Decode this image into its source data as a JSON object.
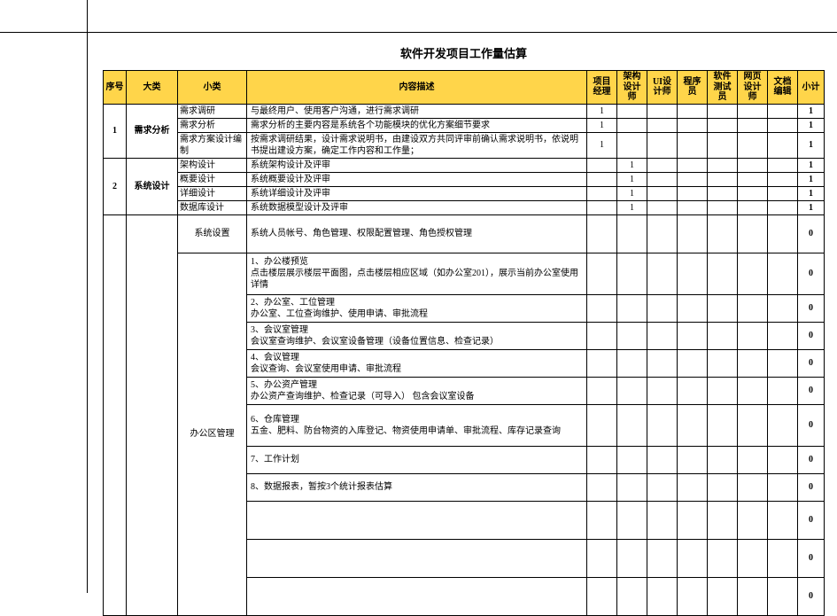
{
  "title": "软件开发项目工作量估算",
  "header": {
    "idx": "序号",
    "cat": "大类",
    "sub": "小类",
    "desc": "内容描述",
    "roles": [
      "项目经理",
      "架构设计师",
      "UI设计师",
      "程序员",
      "软件测试员",
      "网页设计师",
      "文档编辑"
    ],
    "sum": "小计"
  },
  "colors": {
    "header_bg": "#ffd54a",
    "border": "#000000",
    "background": "#ffffff",
    "text": "#000000"
  },
  "sections": [
    {
      "idx": "1",
      "cat": "需求分析",
      "rows": [
        {
          "sub": "需求调研",
          "desc": "与最终用户、使用客户沟通，进行需求调研",
          "vals": [
            "1",
            "",
            "",
            "",
            "",
            "",
            ""
          ],
          "sum": "1"
        },
        {
          "sub": "需求分析",
          "desc": "需求分析的主要内容是系统各个功能模块的优化方案细节要求",
          "vals": [
            "1",
            "",
            "",
            "",
            "",
            "",
            ""
          ],
          "sum": "1"
        },
        {
          "sub": "需求方案设计编制",
          "desc": "按需求调研结果，设计需求说明书，由建设双方共同评审前确认需求说明书，依说明书提出建设方案，确定工作内容和工作量；",
          "vals": [
            "1",
            "",
            "",
            "",
            "",
            "",
            ""
          ],
          "sum": "1"
        }
      ]
    },
    {
      "idx": "2",
      "cat": "系统设计",
      "rows": [
        {
          "sub": "架构设计",
          "desc": "系统架构设计及评审",
          "vals": [
            "",
            "1",
            "",
            "",
            "",
            "",
            ""
          ],
          "sum": "1"
        },
        {
          "sub": "概要设计",
          "desc": "系统概要设计及评审",
          "vals": [
            "",
            "1",
            "",
            "",
            "",
            "",
            ""
          ],
          "sum": "1"
        },
        {
          "sub": "详细设计",
          "desc": "系统详细设计及评审",
          "vals": [
            "",
            "1",
            "",
            "",
            "",
            "",
            ""
          ],
          "sum": "1"
        },
        {
          "sub": "数据库设计",
          "desc": "系统数据模型设计及评审",
          "vals": [
            "",
            "1",
            "",
            "",
            "",
            "",
            ""
          ],
          "sum": "1"
        }
      ]
    },
    {
      "idx": "",
      "cat": "",
      "subgroups": [
        {
          "sub": "系统设置",
          "rows": [
            {
              "desc": "系统人员帐号、角色管理、权限配置管理、角色授权管理",
              "vals": [
                "",
                "",
                "",
                "",
                "",
                "",
                ""
              ],
              "sum": "0",
              "h": "tall"
            }
          ]
        },
        {
          "sub": "办公区管理",
          "rows": [
            {
              "desc": "1、办公楼预览\n点击楼层展示楼层平面图，点击楼层相应区域（如办公室201），展示当前办公室使用详情",
              "vals": [
                "",
                "",
                "",
                "",
                "",
                "",
                ""
              ],
              "sum": "0",
              "h": "vtall"
            },
            {
              "desc": "2、办公室、工位管理\n办公室、工位查询维护、使用申请、审批流程",
              "vals": [
                "",
                "",
                "",
                "",
                "",
                "",
                ""
              ],
              "sum": "0",
              "h": "med"
            },
            {
              "desc": "3、会议室管理\n会议室查询维护、会议室设备管理（设备位置信息、检查记录）",
              "vals": [
                "",
                "",
                "",
                "",
                "",
                "",
                ""
              ],
              "sum": "0",
              "h": "med"
            },
            {
              "desc": "4、会议管理\n会议查询、会议室使用申请、审批流程",
              "vals": [
                "",
                "",
                "",
                "",
                "",
                "",
                ""
              ],
              "sum": "0",
              "h": "med"
            },
            {
              "desc": "5、办公资产管理\n办公资产查询维护、检查记录（可导入） 包含会议室设备",
              "vals": [
                "",
                "",
                "",
                "",
                "",
                "",
                ""
              ],
              "sum": "0",
              "h": "med"
            },
            {
              "desc": "6、仓库管理\n五金、肥料、防台物资的入库登记、物资使用申请单、审批流程、库存记录查询",
              "vals": [
                "",
                "",
                "",
                "",
                "",
                "",
                ""
              ],
              "sum": "0",
              "h": "vtall"
            },
            {
              "desc": "7、工作计划",
              "vals": [
                "",
                "",
                "",
                "",
                "",
                "",
                ""
              ],
              "sum": "0",
              "h": "med"
            },
            {
              "desc": "8、数据报表，暂按3个统计报表估算",
              "vals": [
                "",
                "",
                "",
                "",
                "",
                "",
                ""
              ],
              "sum": "0",
              "h": "med"
            },
            {
              "desc": "",
              "vals": [
                "",
                "",
                "",
                "",
                "",
                "",
                ""
              ],
              "sum": "0",
              "h": "tall"
            },
            {
              "desc": "",
              "vals": [
                "",
                "",
                "",
                "",
                "",
                "",
                ""
              ],
              "sum": "0",
              "h": "tall"
            },
            {
              "desc": "",
              "vals": [
                "",
                "",
                "",
                "",
                "",
                "",
                ""
              ],
              "sum": "0",
              "h": "tall"
            }
          ]
        }
      ]
    }
  ]
}
